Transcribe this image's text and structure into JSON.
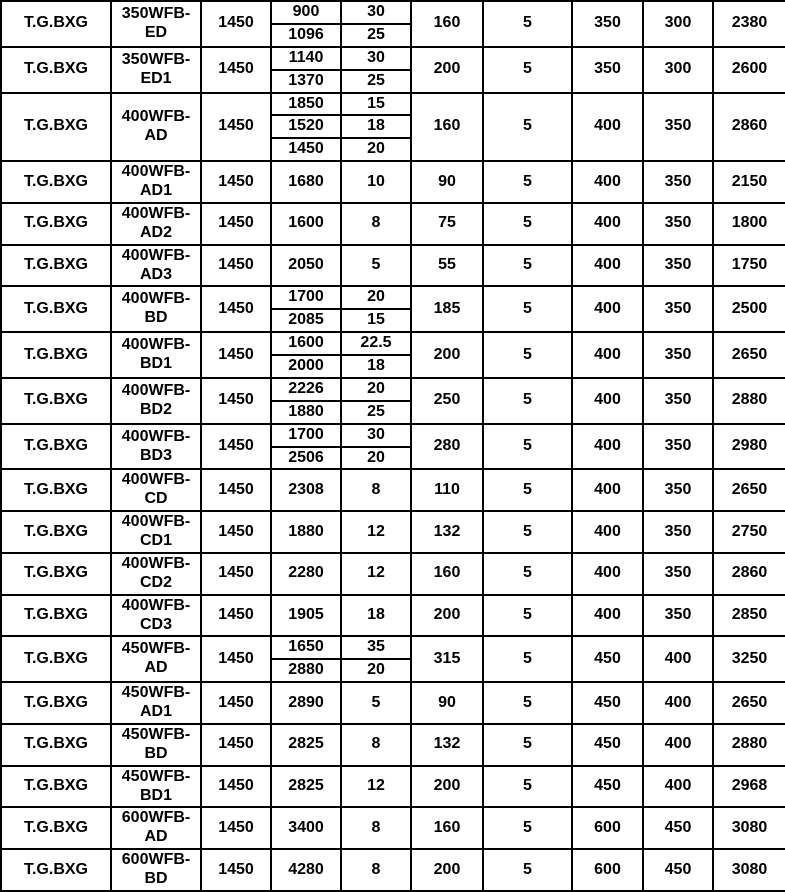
{
  "colors": {
    "background": "#ffffff",
    "border": "#000000",
    "text": "#000000"
  },
  "table": {
    "rows": [
      {
        "brand": "T.G.BXG",
        "model": "350WFB-ED",
        "speed": "1450",
        "points": [
          {
            "flow": "900",
            "head": "30"
          },
          {
            "flow": "1096",
            "head": "25"
          }
        ],
        "power": "160",
        "stages": "5",
        "inlet": "350",
        "outlet": "300",
        "weight": "2380"
      },
      {
        "brand": "T.G.BXG",
        "model": "350WFB-ED1",
        "speed": "1450",
        "points": [
          {
            "flow": "1140",
            "head": "30"
          },
          {
            "flow": "1370",
            "head": "25"
          }
        ],
        "power": "200",
        "stages": "5",
        "inlet": "350",
        "outlet": "300",
        "weight": "2600"
      },
      {
        "brand": "T.G.BXG",
        "model": "400WFB-AD",
        "speed": "1450",
        "points": [
          {
            "flow": "1850",
            "head": "15"
          },
          {
            "flow": "1520",
            "head": "18"
          },
          {
            "flow": "1450",
            "head": "20"
          }
        ],
        "power": "160",
        "stages": "5",
        "inlet": "400",
        "outlet": "350",
        "weight": "2860"
      },
      {
        "brand": "T.G.BXG",
        "model": "400WFB-AD1",
        "speed": "1450",
        "points": [
          {
            "flow": "1680",
            "head": "10"
          }
        ],
        "power": "90",
        "stages": "5",
        "inlet": "400",
        "outlet": "350",
        "weight": "2150"
      },
      {
        "brand": "T.G.BXG",
        "model": "400WFB-AD2",
        "speed": "1450",
        "points": [
          {
            "flow": "1600",
            "head": "8"
          }
        ],
        "power": "75",
        "stages": "5",
        "inlet": "400",
        "outlet": "350",
        "weight": "1800"
      },
      {
        "brand": "T.G.BXG",
        "model": "400WFB-AD3",
        "speed": "1450",
        "points": [
          {
            "flow": "2050",
            "head": "5"
          }
        ],
        "power": "55",
        "stages": "5",
        "inlet": "400",
        "outlet": "350",
        "weight": "1750"
      },
      {
        "brand": "T.G.BXG",
        "model": "400WFB-BD",
        "speed": "1450",
        "points": [
          {
            "flow": "1700",
            "head": "20"
          },
          {
            "flow": "2085",
            "head": "15"
          }
        ],
        "power": "185",
        "stages": "5",
        "inlet": "400",
        "outlet": "350",
        "weight": "2500"
      },
      {
        "brand": "T.G.BXG",
        "model": "400WFB-BD1",
        "speed": "1450",
        "points": [
          {
            "flow": "1600",
            "head": "22.5"
          },
          {
            "flow": "2000",
            "head": "18"
          }
        ],
        "power": "200",
        "stages": "5",
        "inlet": "400",
        "outlet": "350",
        "weight": "2650"
      },
      {
        "brand": "T.G.BXG",
        "model": "400WFB-BD2",
        "speed": "1450",
        "points": [
          {
            "flow": "2226",
            "head": "20"
          },
          {
            "flow": "1880",
            "head": "25"
          }
        ],
        "power": "250",
        "stages": "5",
        "inlet": "400",
        "outlet": "350",
        "weight": "2880"
      },
      {
        "brand": "T.G.BXG",
        "model": "400WFB-BD3",
        "speed": "1450",
        "points": [
          {
            "flow": "1700",
            "head": "30"
          },
          {
            "flow": "2506",
            "head": "20"
          }
        ],
        "power": "280",
        "stages": "5",
        "inlet": "400",
        "outlet": "350",
        "weight": "2980"
      },
      {
        "brand": "T.G.BXG",
        "model": "400WFB-CD",
        "speed": "1450",
        "points": [
          {
            "flow": "2308",
            "head": "8"
          }
        ],
        "power": "110",
        "stages": "5",
        "inlet": "400",
        "outlet": "350",
        "weight": "2650"
      },
      {
        "brand": "T.G.BXG",
        "model": "400WFB-CD1",
        "speed": "1450",
        "points": [
          {
            "flow": "1880",
            "head": "12"
          }
        ],
        "power": "132",
        "stages": "5",
        "inlet": "400",
        "outlet": "350",
        "weight": "2750"
      },
      {
        "brand": "T.G.BXG",
        "model": "400WFB-CD2",
        "speed": "1450",
        "points": [
          {
            "flow": "2280",
            "head": "12"
          }
        ],
        "power": "160",
        "stages": "5",
        "inlet": "400",
        "outlet": "350",
        "weight": "2860"
      },
      {
        "brand": "T.G.BXG",
        "model": "400WFB-CD3",
        "speed": "1450",
        "points": [
          {
            "flow": "1905",
            "head": "18"
          }
        ],
        "power": "200",
        "stages": "5",
        "inlet": "400",
        "outlet": "350",
        "weight": "2850"
      },
      {
        "brand": "T.G.BXG",
        "model": "450WFB-AD",
        "speed": "1450",
        "points": [
          {
            "flow": "1650",
            "head": "35"
          },
          {
            "flow": "2880",
            "head": "20"
          }
        ],
        "power": "315",
        "stages": "5",
        "inlet": "450",
        "outlet": "400",
        "weight": "3250"
      },
      {
        "brand": "T.G.BXG",
        "model": "450WFB-AD1",
        "speed": "1450",
        "points": [
          {
            "flow": "2890",
            "head": "5"
          }
        ],
        "power": "90",
        "stages": "5",
        "inlet": "450",
        "outlet": "400",
        "weight": "2650"
      },
      {
        "brand": "T.G.BXG",
        "model": "450WFB-BD",
        "speed": "1450",
        "points": [
          {
            "flow": "2825",
            "head": "8"
          }
        ],
        "power": "132",
        "stages": "5",
        "inlet": "450",
        "outlet": "400",
        "weight": "2880"
      },
      {
        "brand": "T.G.BXG",
        "model": "450WFB-BD1",
        "speed": "1450",
        "points": [
          {
            "flow": "2825",
            "head": "12"
          }
        ],
        "power": "200",
        "stages": "5",
        "inlet": "450",
        "outlet": "400",
        "weight": "2968"
      },
      {
        "brand": "T.G.BXG",
        "model": "600WFB-AD",
        "speed": "1450",
        "points": [
          {
            "flow": "3400",
            "head": "8"
          }
        ],
        "power": "160",
        "stages": "5",
        "inlet": "600",
        "outlet": "450",
        "weight": "3080"
      },
      {
        "brand": "T.G.BXG",
        "model": "600WFB-BD",
        "speed": "1450",
        "points": [
          {
            "flow": "4280",
            "head": "8"
          }
        ],
        "power": "200",
        "stages": "5",
        "inlet": "600",
        "outlet": "450",
        "weight": "3080"
      }
    ]
  }
}
